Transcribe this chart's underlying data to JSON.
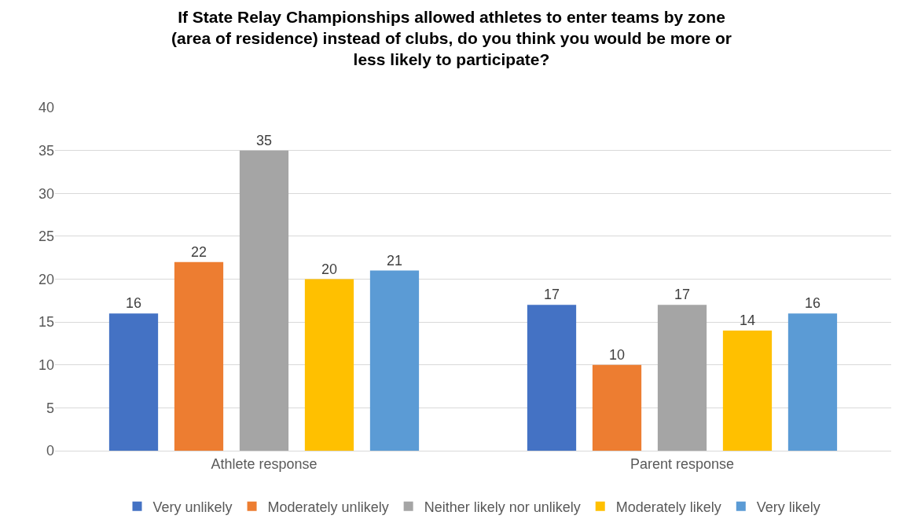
{
  "chart_data": {
    "type": "bar",
    "title": "If State Relay Championships allowed athletes to enter teams by zone\n(area of residence) instead of clubs, do you think you would be more or\nless likely to participate?",
    "categories": [
      "Athlete response",
      "Parent response"
    ],
    "series": [
      {
        "name": "Very unlikely",
        "color": "#4472c4",
        "values": [
          16,
          17
        ]
      },
      {
        "name": "Moderately unlikely",
        "color": "#ed7d31",
        "values": [
          22,
          10
        ]
      },
      {
        "name": "Neither likely nor unlikely",
        "color": "#a5a5a5",
        "values": [
          35,
          17
        ]
      },
      {
        "name": "Moderately likely",
        "color": "#ffc000",
        "values": [
          20,
          14
        ]
      },
      {
        "name": "Very likely",
        "color": "#5b9bd5",
        "values": [
          21,
          16
        ]
      }
    ],
    "ylim": [
      0,
      40
    ],
    "yticks": [
      0,
      5,
      10,
      15,
      20,
      25,
      30,
      35,
      40
    ],
    "grid": "y",
    "legend": "bottom",
    "data_labels": true
  }
}
